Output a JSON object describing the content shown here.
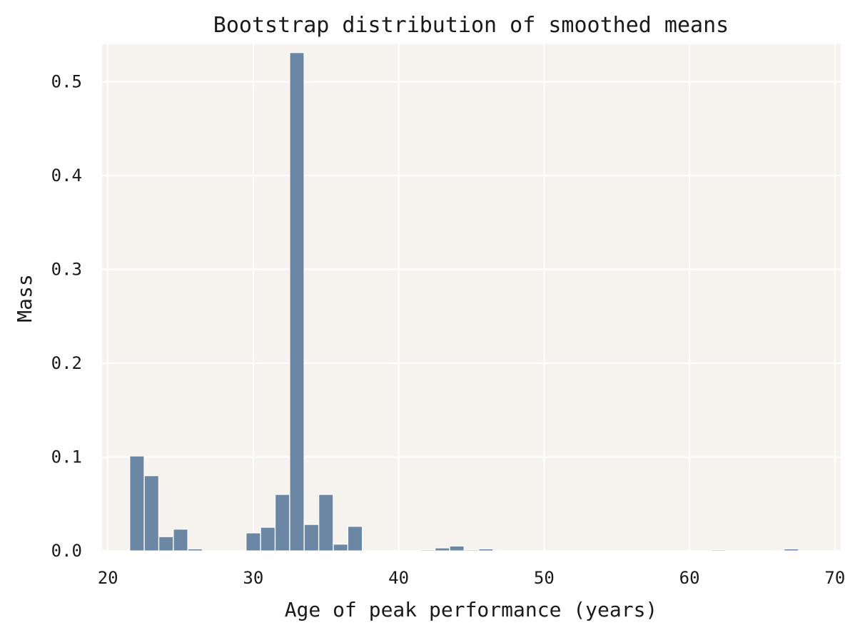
{
  "chart_data": {
    "type": "bar",
    "title": "Bootstrap distribution of smoothed means",
    "xlabel": "Age of peak performance (years)",
    "ylabel": "Mass",
    "xlim": [
      19.6,
      70.4
    ],
    "ylim": [
      0,
      0.54
    ],
    "xticks": [
      20,
      30,
      40,
      50,
      60,
      70
    ],
    "yticks": [
      0.0,
      0.1,
      0.2,
      0.3,
      0.4,
      0.5
    ],
    "xtick_labels": [
      "20",
      "30",
      "40",
      "50",
      "60",
      "70"
    ],
    "ytick_labels": [
      "0.0",
      "0.1",
      "0.2",
      "0.3",
      "0.4",
      "0.5"
    ],
    "grid": true,
    "bin_width": 0.98,
    "bins": [
      {
        "x": 22,
        "value": 0.101
      },
      {
        "x": 23,
        "value": 0.08
      },
      {
        "x": 24,
        "value": 0.015
      },
      {
        "x": 25,
        "value": 0.023
      },
      {
        "x": 26,
        "value": 0.002
      },
      {
        "x": 27,
        "value": 0.0
      },
      {
        "x": 28,
        "value": 0.0
      },
      {
        "x": 29,
        "value": 0.0
      },
      {
        "x": 30,
        "value": 0.019
      },
      {
        "x": 31,
        "value": 0.025
      },
      {
        "x": 32,
        "value": 0.06
      },
      {
        "x": 33,
        "value": 0.531
      },
      {
        "x": 34,
        "value": 0.028
      },
      {
        "x": 35,
        "value": 0.06
      },
      {
        "x": 36,
        "value": 0.007
      },
      {
        "x": 37,
        "value": 0.026
      },
      {
        "x": 42,
        "value": 0.001
      },
      {
        "x": 43,
        "value": 0.003
      },
      {
        "x": 44,
        "value": 0.005
      },
      {
        "x": 45,
        "value": 0.001
      },
      {
        "x": 46,
        "value": 0.002
      },
      {
        "x": 62,
        "value": 0.001
      },
      {
        "x": 67,
        "value": 0.002
      }
    ],
    "colors": {
      "bar": "#6b87a4",
      "bar_edge": "#ffffff",
      "background": "#f6f3ee",
      "grid": "#ffffff"
    }
  }
}
